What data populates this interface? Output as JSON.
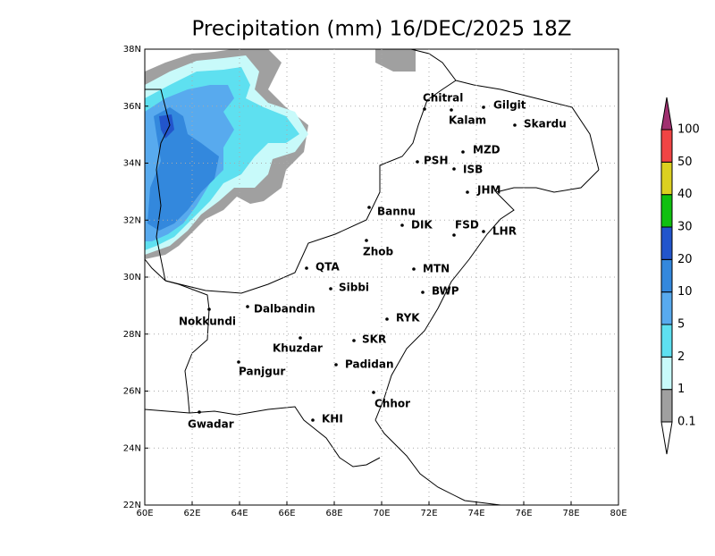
{
  "title": "Precipitation (mm) 16/DEC/2025 18Z",
  "map": {
    "xlim": [
      60,
      80
    ],
    "ylim": [
      22,
      38
    ],
    "xticks": [
      {
        "value": 60,
        "label": "60E"
      },
      {
        "value": 62,
        "label": "62E"
      },
      {
        "value": 64,
        "label": "64E"
      },
      {
        "value": 66,
        "label": "66E"
      },
      {
        "value": 68,
        "label": "68E"
      },
      {
        "value": 70,
        "label": "70E"
      },
      {
        "value": 72,
        "label": "72E"
      },
      {
        "value": 74,
        "label": "74E"
      },
      {
        "value": 76,
        "label": "76E"
      },
      {
        "value": 78,
        "label": "78E"
      },
      {
        "value": 80,
        "label": "80E"
      }
    ],
    "yticks": [
      {
        "value": 22,
        "label": "22N"
      },
      {
        "value": 24,
        "label": "24N"
      },
      {
        "value": 26,
        "label": "26N"
      },
      {
        "value": 28,
        "label": "28N"
      },
      {
        "value": 30,
        "label": "30N"
      },
      {
        "value": 32,
        "label": "32N"
      },
      {
        "value": 34,
        "label": "34N"
      },
      {
        "value": 36,
        "label": "36N"
      },
      {
        "value": 38,
        "label": "38N"
      }
    ],
    "grid": true,
    "cities": [
      "Chitral",
      "Kalam",
      "Gilgit",
      "Skardu",
      "MZD",
      "PSH",
      "ISB",
      "JHM",
      "Bannu",
      "DIK",
      "FSD",
      "LHR",
      "Zhob",
      "QTA",
      "MTN",
      "Sibbi",
      "BWP",
      "Nokkundi",
      "Dalbandin",
      "RYK",
      "Khuzdar",
      "SKR",
      "Panjgur",
      "Padidan",
      "Chhor",
      "KHI",
      "Gwadar"
    ]
  },
  "colorbar": {
    "levels": [
      0.1,
      1,
      2,
      5,
      10,
      20,
      30,
      40,
      50,
      100
    ],
    "colors": [
      "#a0a0a0",
      "#c8fafa",
      "#5ee0f0",
      "#58aaee",
      "#3388dd",
      "#2255cc",
      "#10c010",
      "#dcd020",
      "#f04444"
    ],
    "under_color": "#ffffff",
    "over_color": "#a03070"
  }
}
